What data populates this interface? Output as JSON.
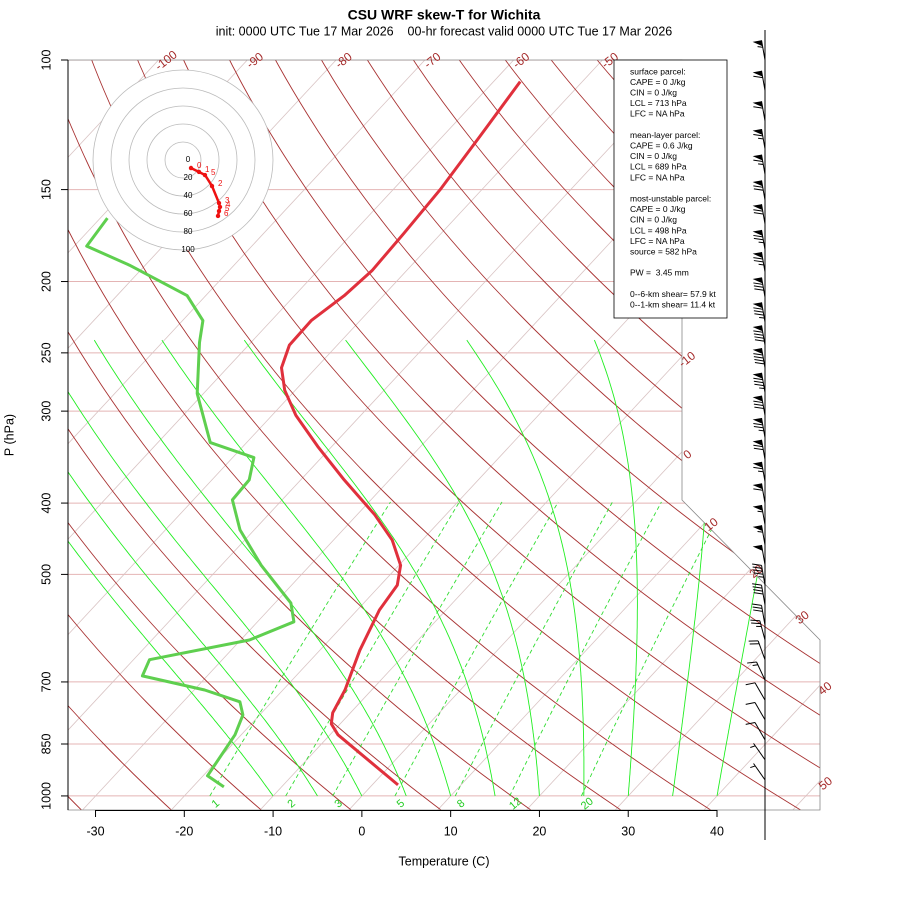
{
  "chart_data": {
    "type": "skewt",
    "title": "CSU WRF skew-T for Wichita",
    "subtitle": "init: 0000 UTC Tue 17 Mar 2026    00-hr forecast valid 0000 UTC Tue 17 Mar 2026",
    "x_label": "Temperature (C)",
    "y_label": "P (hPa)",
    "xlim": [
      -33.1,
      51.6
    ],
    "ylim": [
      1045,
      100
    ],
    "ylog": true,
    "xticks": [
      -30,
      -20,
      -10,
      0,
      10,
      20,
      30,
      40
    ],
    "yticks": [
      100,
      150,
      200,
      250,
      300,
      400,
      500,
      700,
      850,
      1000
    ],
    "series": [
      {
        "color": "#e0303c",
        "pressure": [
          966,
          826,
          798,
          771,
          718,
          634,
          559,
          517,
          486,
          449,
          415,
          372,
          335,
          304,
          281,
          262,
          244,
          226,
          209,
          193,
          172,
          150,
          127,
          107
        ],
        "temperature": [
          2.9,
          -9.1,
          -11.0,
          -12.0,
          -13.0,
          -15.5,
          -17.5,
          -18.1,
          -19.8,
          -23.4,
          -28.0,
          -35.1,
          -41.6,
          -47.3,
          -51.2,
          -53.9,
          -55.4,
          -55.5,
          -54.4,
          -53.9,
          -54.2,
          -54.7,
          -55.8,
          -57.0
        ]
      },
      {
        "color": "#5fcf4f",
        "pressure": [
          972,
          939,
          826,
          776,
          745,
          718,
          687,
          653,
          614,
          580,
          547,
          486,
          435,
          396,
          372,
          347,
          331,
          284,
          242,
          226,
          209,
          190,
          179,
          164
        ],
        "temperature": [
          -16.5,
          -19.5,
          -20.7,
          -21.9,
          -23.6,
          -28.8,
          -37.3,
          -38.2,
          -29.0,
          -25.9,
          -28.2,
          -35.5,
          -41.6,
          -45.6,
          -45.8,
          -47.6,
          -54.1,
          -60.7,
          -65.8,
          -67.7,
          -72.1,
          -81.8,
          -88.6,
          -89.2
        ]
      }
    ],
    "isotherms": [
      -100,
      -90,
      -80,
      -70,
      -60,
      -50,
      -40,
      -30,
      -20,
      -10,
      0,
      10,
      20,
      30,
      40,
      50
    ],
    "mixing_ratios": [
      1,
      2,
      3,
      5,
      8,
      12,
      20
    ],
    "hodograph": {
      "rings": [
        0,
        20,
        40,
        60,
        80,
        100
      ],
      "u": [
        8.9,
        17.8,
        24.4,
        32.2,
        40,
        41.1,
        40,
        38.9
      ],
      "v": [
        -8.9,
        -13.3,
        -16.7,
        -28.9,
        -47.8,
        -52.2,
        -56.7,
        -62.2
      ],
      "labels": [
        "0",
        "1",
        "5",
        "2",
        "3",
        "4",
        "5",
        "6"
      ],
      "color": "#ee1111"
    },
    "winds": {
      "pressure": [
        100,
        110,
        121,
        132,
        143,
        155,
        167,
        181,
        194,
        210,
        227,
        244,
        262,
        283,
        304,
        326,
        349,
        374,
        400,
        428,
        456,
        485,
        517,
        550,
        586,
        614,
        653,
        696,
        741,
        788,
        839,
        893,
        951
      ],
      "speed": [
        55,
        60,
        60,
        65,
        65,
        70,
        70,
        75,
        75,
        80,
        85,
        90,
        90,
        85,
        80,
        75,
        70,
        65,
        60,
        55,
        55,
        50,
        45,
        40,
        30,
        25,
        20,
        15,
        10,
        10,
        10,
        5,
        5
      ],
      "direction": [
        350,
        350,
        350,
        350,
        350,
        350,
        350,
        350,
        350,
        350,
        350,
        350,
        350,
        350,
        350,
        350,
        350,
        350,
        350,
        350,
        350,
        350,
        350,
        350,
        350,
        345,
        340,
        335,
        330,
        330,
        330,
        325,
        325
      ]
    },
    "info_box": [
      [
        "surface parcel:",
        "CAPE = 0 J/kg",
        "CIN = 0 J/kg",
        "LCL = 713 hPa",
        "LFC = NA hPa"
      ],
      [
        "mean-layer parcel:",
        "CAPE = 0.6 J/kg",
        "CIN = 0 J/kg",
        "LCL = 689 hPa",
        "LFC = NA hPa"
      ],
      [
        "most-unstable parcel:",
        "CAPE = 0 J/kg",
        "CIN = 0 J/kg",
        "LCL = 498 hPa",
        "LFC = NA hPa",
        "source = 582 hPa"
      ],
      [
        "PW =  3.45 mm"
      ],
      [
        "0--6-km shear= 57.9 kt",
        "0--1-km shear= 11.4 kt"
      ]
    ]
  }
}
